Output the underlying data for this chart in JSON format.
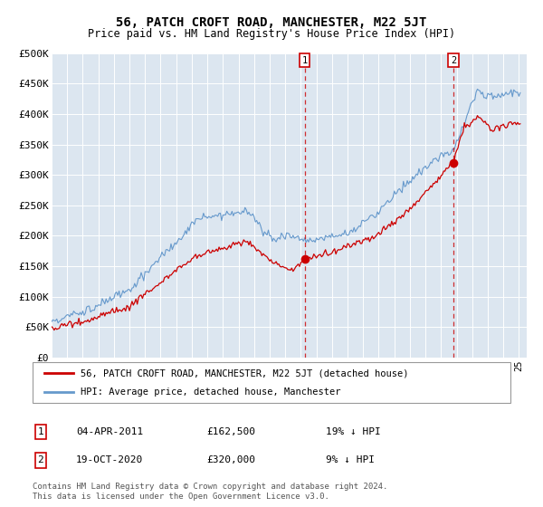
{
  "title": "56, PATCH CROFT ROAD, MANCHESTER, M22 5JT",
  "subtitle": "Price paid vs. HM Land Registry's House Price Index (HPI)",
  "legend_line1": "56, PATCH CROFT ROAD, MANCHESTER, M22 5JT (detached house)",
  "legend_line2": "HPI: Average price, detached house, Manchester",
  "transaction1_date": "04-APR-2011",
  "transaction1_price": 162500,
  "transaction1_label": "19% ↓ HPI",
  "transaction1_year": 2011.25,
  "transaction2_date": "19-OCT-2020",
  "transaction2_price": 320000,
  "transaction2_label": "9% ↓ HPI",
  "transaction2_year": 2020.8,
  "footer": "Contains HM Land Registry data © Crown copyright and database right 2024.\nThis data is licensed under the Open Government Licence v3.0.",
  "hpi_color": "#6699cc",
  "price_color": "#cc0000",
  "background_color": "#dce6f0",
  "ylim": [
    0,
    500000
  ],
  "xlim_start": 1995,
  "xlim_end": 2025
}
